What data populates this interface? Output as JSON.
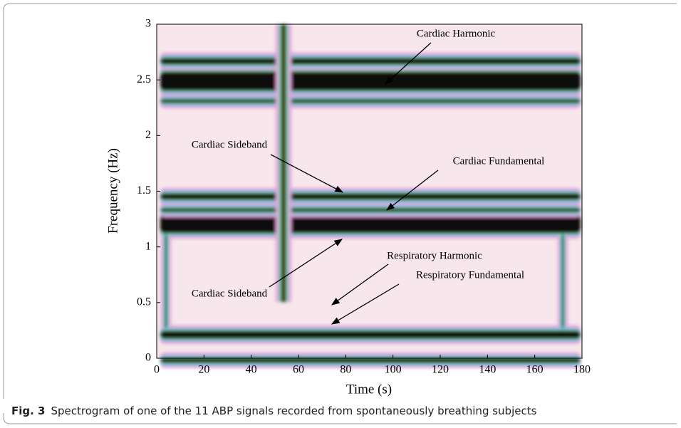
{
  "chart_data": {
    "type": "spectrogram",
    "xlabel": "Time (s)",
    "ylabel": "Frequency (Hz)",
    "xlim": [
      0,
      180
    ],
    "ylim": [
      0,
      3
    ],
    "xticks": [
      0,
      20,
      40,
      60,
      80,
      100,
      120,
      140,
      160,
      180
    ],
    "yticks": [
      0,
      0.5,
      1,
      1.5,
      2,
      2.5,
      3
    ],
    "annotations": [
      "Cardiac Harmonic",
      "Cardiac Sideband",
      "Cardiac Fundamental",
      "Cardiac Sideband",
      "Respiratory Harmonic",
      "Respiratory Fundamental"
    ]
  },
  "caption": {
    "label": "Fig. 3",
    "text": "Spectrogram of one of the 11 ABP signals recorded from spontaneously breathing subjects"
  }
}
